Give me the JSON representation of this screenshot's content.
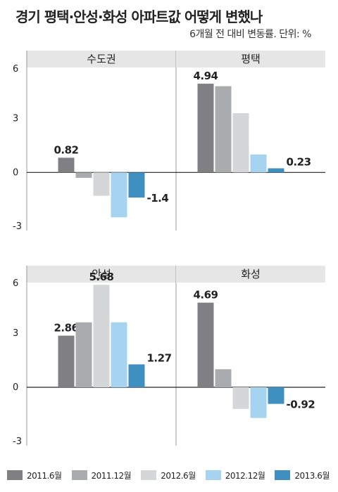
{
  "title": "경기 평택·안성·화성 아파트값 어떻게 변했나",
  "subtitle": "6개월 전 대비 변동률. 단위: %",
  "legend": [
    {
      "label": "2011.6월",
      "color": "#808082"
    },
    {
      "label": "2011.12월",
      "color": "#a9abad"
    },
    {
      "label": "2012.6월",
      "color": "#d5d6d8"
    },
    {
      "label": "2012.12월",
      "color": "#a6d3f0"
    },
    {
      "label": "2013.6월",
      "color": "#3f8fc1"
    }
  ],
  "chart_data": {
    "type": "bar",
    "series_names": [
      "2011.6월",
      "2011.12월",
      "2012.6월",
      "2012.12월",
      "2013.6월"
    ],
    "colors": [
      "#808082",
      "#a9abad",
      "#d5d6d8",
      "#a6d3f0",
      "#3f8fc1"
    ],
    "ylim": [
      -3,
      6
    ],
    "yticks": [
      "6",
      "3",
      "0",
      "-3"
    ],
    "panels": [
      {
        "name": "수도권",
        "values": [
          0.82,
          -0.3,
          -1.3,
          -2.5,
          -1.4
        ],
        "labels": [
          "0.82",
          "",
          "",
          "",
          "-1.4"
        ]
      },
      {
        "name": "평택",
        "values": [
          4.94,
          4.8,
          3.3,
          1.0,
          0.23
        ],
        "labels": [
          "4.94",
          "",
          "",
          "",
          "0.23"
        ]
      },
      {
        "name": "안성",
        "values": [
          2.86,
          3.6,
          5.68,
          3.6,
          1.27
        ],
        "labels": [
          "2.86",
          "",
          "5.68",
          "",
          "1.27"
        ]
      },
      {
        "name": "화성",
        "values": [
          4.69,
          1.0,
          -1.2,
          -1.7,
          -0.92
        ],
        "labels": [
          "4.69",
          "",
          "",
          "",
          "-0.92"
        ]
      }
    ]
  }
}
